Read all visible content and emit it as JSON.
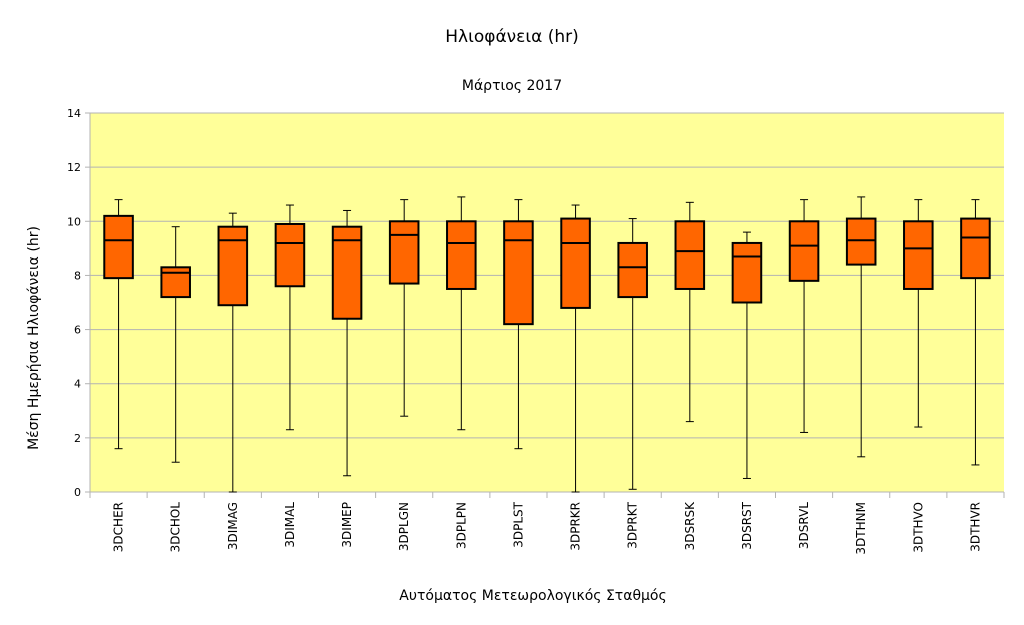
{
  "chart_data": {
    "type": "boxplot",
    "title": "Ηλιοφάνεια (hr)",
    "subtitle": "Μάρτιος 2017",
    "xlabel": "Αυτόματος Μετεωρολογικός Σταθμός",
    "ylabel": "Μέση Ημερήσια Ηλιοφάνεια (hr)",
    "ylim": [
      0,
      14
    ],
    "yticks": [
      0,
      2,
      4,
      6,
      8,
      10,
      12,
      14
    ],
    "grid": true,
    "colors": {
      "plot_bg": "#ffff99",
      "box_fill": "#ff6600",
      "gridline": "#b3b3b3",
      "stroke": "#000000"
    },
    "categories": [
      "3DCHER",
      "3DCHOL",
      "3DIMAG",
      "3DIMAL",
      "3DIMEP",
      "3DPLGN",
      "3DPLPN",
      "3DPLST",
      "3DPRKR",
      "3DPRKT",
      "3DSRSK",
      "3DSRST",
      "3DSRVL",
      "3DTHNM",
      "3DTHVO",
      "3DTHVR"
    ],
    "min": [
      1.6,
      1.1,
      0.0,
      2.3,
      0.6,
      2.8,
      2.3,
      1.6,
      0.0,
      0.1,
      2.6,
      0.5,
      2.2,
      1.3,
      2.4,
      1.0
    ],
    "q1": [
      7.9,
      7.2,
      6.9,
      7.6,
      6.4,
      7.7,
      7.5,
      6.2,
      6.8,
      7.2,
      7.5,
      7.0,
      7.8,
      8.4,
      7.5,
      7.9
    ],
    "median": [
      9.3,
      8.1,
      9.3,
      9.2,
      9.3,
      9.5,
      9.2,
      9.3,
      9.2,
      8.3,
      8.9,
      8.7,
      9.1,
      9.3,
      9.0,
      9.4
    ],
    "q3": [
      10.2,
      8.3,
      9.8,
      9.9,
      9.8,
      10.0,
      10.0,
      10.0,
      10.1,
      9.2,
      10.0,
      9.2,
      10.0,
      10.1,
      10.0,
      10.1
    ],
    "max": [
      10.8,
      9.8,
      10.3,
      10.6,
      10.4,
      10.8,
      10.9,
      10.8,
      10.6,
      10.1,
      10.7,
      9.6,
      10.8,
      10.9,
      10.8,
      10.8
    ]
  }
}
